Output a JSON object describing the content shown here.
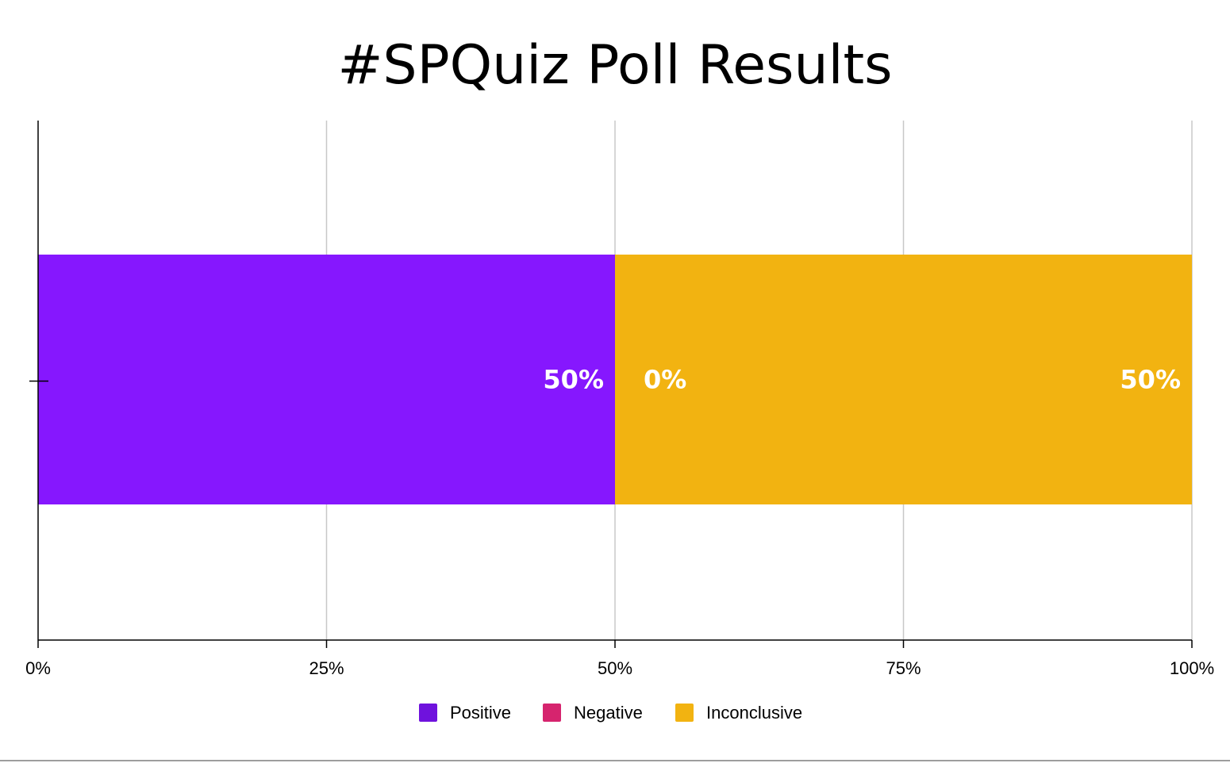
{
  "chart_data": {
    "type": "bar",
    "orientation": "horizontal",
    "stacked": "100%",
    "title": "#SPQuiz Poll Results",
    "xlabel": "",
    "ylabel": "",
    "xlim": [
      0,
      100
    ],
    "x_ticks": [
      "0%",
      "25%",
      "50%",
      "75%",
      "100%"
    ],
    "categories": [
      ""
    ],
    "series": [
      {
        "name": "Positive",
        "values": [
          50
        ],
        "label": "50%",
        "color": "#8617fe"
      },
      {
        "name": "Negative",
        "values": [
          0
        ],
        "label": "0%",
        "color": "#d6246e"
      },
      {
        "name": "Inconclusive",
        "values": [
          50
        ],
        "label": "50%",
        "color": "#f2b311"
      }
    ],
    "legend": {
      "position": "bottom",
      "swatch_colors": [
        "#6f12dd",
        "#d6246e",
        "#f2b311"
      ]
    },
    "grid": true
  }
}
